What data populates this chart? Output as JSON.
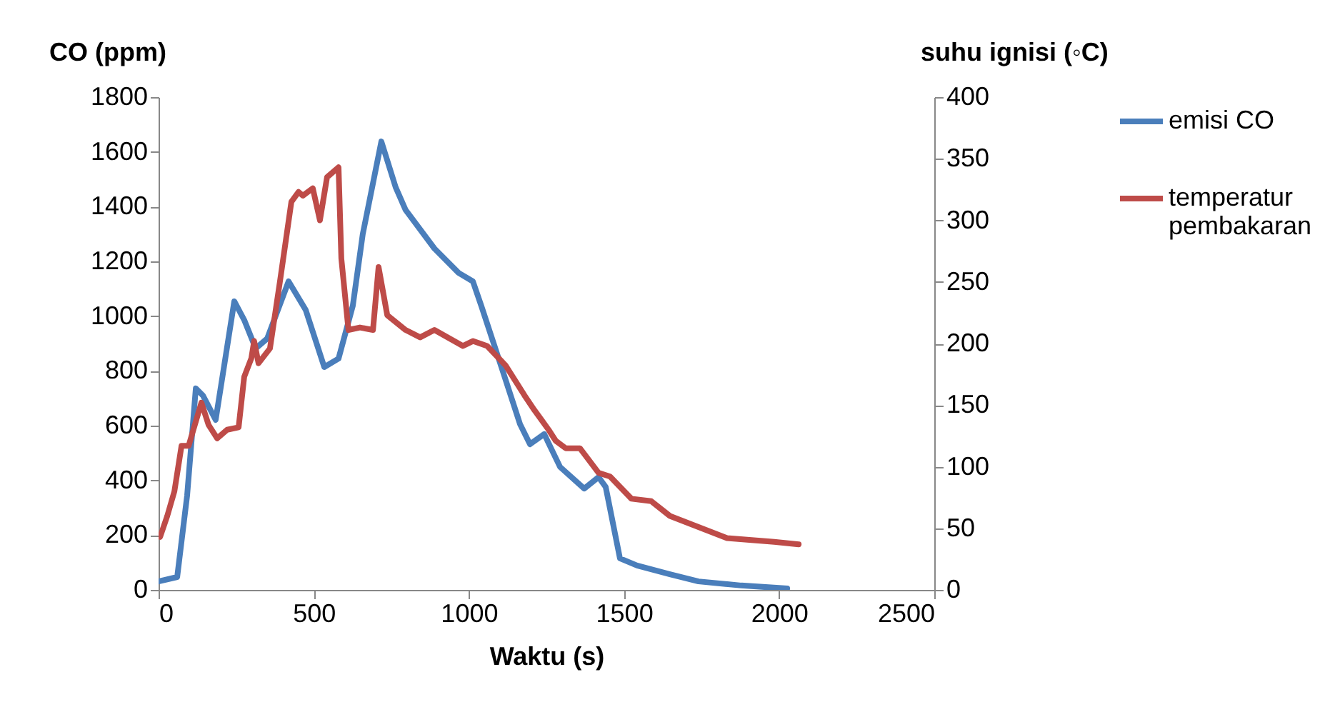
{
  "chart_data": {
    "type": "line",
    "xlabel": "Waktu (s)",
    "ylabel": "CO (ppm)",
    "y2label": "suhu ignisi (◦C)",
    "xlim": [
      0,
      2500
    ],
    "xticks": [
      0,
      500,
      1000,
      1500,
      2000,
      2500
    ],
    "ylim": [
      0,
      1800
    ],
    "yticks": [
      0,
      200,
      400,
      600,
      800,
      1000,
      1200,
      1400,
      1600,
      1800
    ],
    "y2lim": [
      0,
      400
    ],
    "y2ticks": [
      0,
      50,
      100,
      150,
      200,
      250,
      300,
      350,
      400
    ],
    "grid": false,
    "legend": "right",
    "marker": "none",
    "line_style": "solid",
    "series": [
      {
        "name": "emisi CO",
        "color": "#4a7ebb",
        "x": [
          0,
          60,
          92,
          120,
          143,
          184,
          244,
          276,
          313,
          350,
          419,
          474,
          534,
          580,
          626,
          658,
          718,
          764,
          796,
          889,
          967,
          1013,
          1040,
          1105,
          1165,
          1197,
          1243,
          1294,
          1372,
          1418,
          1441,
          1487,
          1542,
          1648,
          1740,
          1878,
          2026
        ],
        "values": [
          31,
          47,
          344,
          736,
          710,
          621,
          1054,
          986,
          882,
          918,
          1127,
          1023,
          814,
          845,
          1038,
          1299,
          1638,
          1471,
          1388,
          1247,
          1158,
          1127,
          1038,
          814,
          605,
          532,
          569,
          449,
          370,
          412,
          376,
          115,
          89,
          57,
          31,
          16,
          5
        ]
      },
      {
        "name": "temperatur pembakaran",
        "color": "#be4b48",
        "axis": "y2",
        "x": [
          5,
          28,
          51,
          74,
          97,
          138,
          161,
          189,
          221,
          258,
          276,
          299,
          308,
          322,
          359,
          391,
          428,
          451,
          465,
          497,
          520,
          543,
          580,
          589,
          612,
          649,
          691,
          709,
          737,
          796,
          843,
          889,
          981,
          1013,
          1059,
          1119,
          1179,
          1211,
          1257,
          1280,
          1312,
          1358,
          1418,
          1455,
          1524,
          1588,
          1648,
          1740,
          1832,
          1984,
          2063
        ],
        "values": [
          43,
          60,
          80,
          117,
          117,
          152,
          134,
          123,
          130,
          132,
          173,
          188,
          202,
          184,
          196,
          250,
          315,
          323,
          320,
          326,
          300,
          335,
          343,
          269,
          211,
          213,
          211,
          262,
          223,
          211,
          205,
          211,
          198,
          202,
          198,
          182,
          158,
          146,
          130,
          121,
          115,
          115,
          95,
          92,
          74,
          72,
          60,
          51,
          42,
          39,
          37
        ]
      }
    ]
  }
}
